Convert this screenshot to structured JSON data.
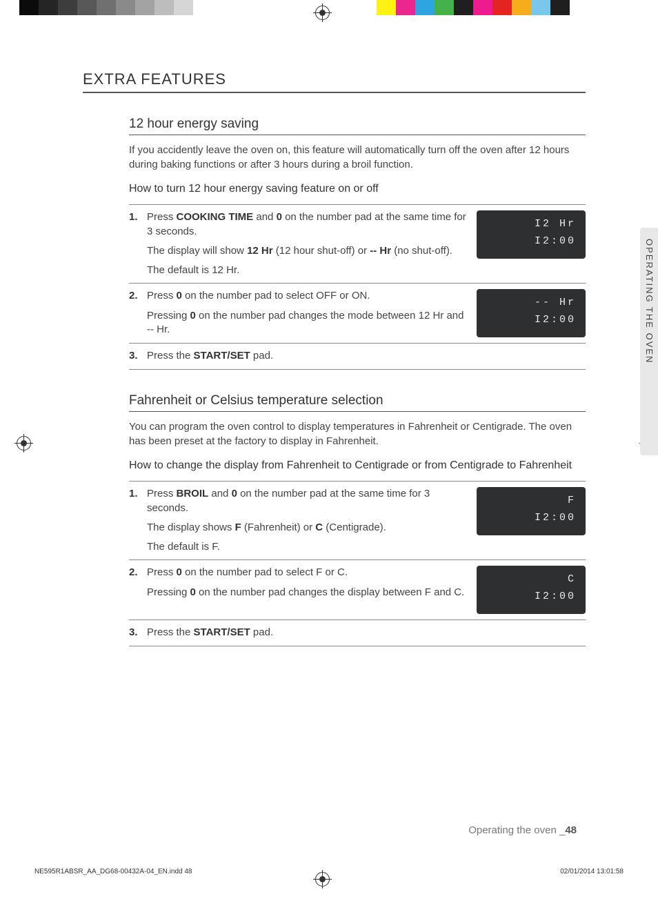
{
  "grayscaleBar": [
    "#0b0b0b",
    "#252525",
    "#3d3d3d",
    "#575757",
    "#707070",
    "#8a8a8a",
    "#a3a3a3",
    "#bdbdbd",
    "#d6d6d6",
    "#ffffff"
  ],
  "colorBar": [
    "#fff215",
    "#ec268f",
    "#2fa5df",
    "#44b04a",
    "#1f1f1f",
    "#ed1b8f",
    "#e42422",
    "#f7ac1c",
    "#7ac7eb",
    "#1f1f1f"
  ],
  "mainTitle": "EXTRA FEATURES",
  "sideTab": "OPERATING THE OVEN",
  "sectionA": {
    "title": "12 hour energy saving",
    "intro": "If you accidently leave the oven on, this feature will automatically turn off the oven after 12 hours during baking functions or after 3 hours during a broil function.",
    "howto": "How to turn 12 hour energy saving feature on or off",
    "steps": [
      {
        "num": "1.",
        "p1a": "Press ",
        "p1b": "COOKING TIME",
        "p1c": " and ",
        "p1d": "0",
        "p1e": " on the number pad at the same time for 3 seconds.",
        "p2a": "The display will show ",
        "p2b": "12 Hr",
        "p2c": " (12 hour shut-off) or ",
        "p2d": "-- Hr",
        "p2e": " (no shut-off).",
        "p3": "The default is 12 Hr.",
        "disp1": "I2 Hr",
        "disp2": "I2:00"
      },
      {
        "num": "2.",
        "p1a": "Press ",
        "p1b": "0",
        "p1c": " on the number pad to select OFF or ON.",
        "p2a": "Pressing ",
        "p2b": "0",
        "p2c": " on the number pad changes the mode between 12 Hr and -- Hr.",
        "disp1": "-- Hr",
        "disp2": "I2:00"
      },
      {
        "num": "3.",
        "p1a": "Press the ",
        "p1b": "START/SET",
        "p1c": " pad."
      }
    ]
  },
  "sectionB": {
    "title": "Fahrenheit or Celsius temperature selection",
    "intro": "You can program the oven control to display temperatures in Fahrenheit or Centigrade. The oven has been preset at the factory to display in Fahrenheit.",
    "howto": "How to change the display from Fahrenheit to Centigrade or from Centigrade to Fahrenheit",
    "steps": [
      {
        "num": "1.",
        "p1a": "Press ",
        "p1b": "BROIL",
        "p1c": " and ",
        "p1d": "0",
        "p1e": " on the number pad at the same time for 3 seconds.",
        "p2a": "The display shows ",
        "p2b": "F",
        "p2c": " (Fahrenheit) or ",
        "p2d": "C",
        "p2e": " (Centigrade).",
        "p3": "The default is F.",
        "disp1": "F",
        "disp2": "I2:00"
      },
      {
        "num": "2.",
        "p1a": "Press ",
        "p1b": "0",
        "p1c": " on the number pad to select F or C.",
        "p2a": "Pressing ",
        "p2b": "0",
        "p2c": " on the number pad changes the display between F and C.",
        "disp1": "C",
        "disp2": "I2:00"
      },
      {
        "num": "3.",
        "p1a": "Press the ",
        "p1b": "START/SET",
        "p1c": " pad."
      }
    ]
  },
  "footer": {
    "label": "Operating the oven _",
    "page": "48"
  },
  "imprint": {
    "file": "NE595R1ABSR_AA_DG68-00432A-04_EN.indd   48",
    "stamp": "02/01/2014   13:01:58"
  }
}
